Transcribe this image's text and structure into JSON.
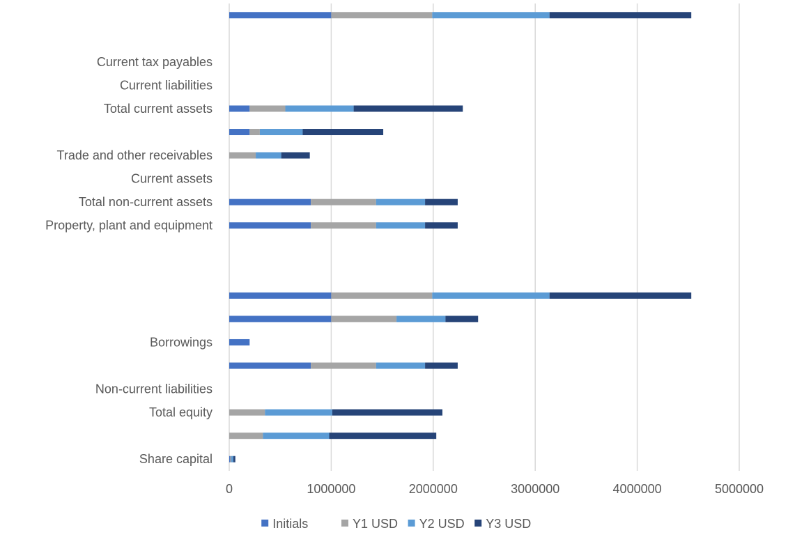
{
  "chart_data": {
    "type": "bar",
    "orientation": "horizontal",
    "stacked": true,
    "title": "",
    "xlabel": "",
    "ylabel": "",
    "xlim": [
      0,
      5000000
    ],
    "xticks": [
      "0",
      "1000000",
      "2000000",
      "3000000",
      "4000000",
      "5000000"
    ],
    "grid": true,
    "legend_position": "bottom",
    "categories": [
      "Share capital",
      "",
      "Total equity",
      "Non-current liabilities",
      "",
      "Borrowings",
      "",
      "",
      "",
      "",
      "Property, plant and equipment",
      "Total non-current assets",
      "Current assets",
      "Trade and other receivables",
      "",
      "Total current assets",
      "Current liabilities",
      "Current tax payables",
      "",
      ""
    ],
    "series": [
      {
        "name": "Initials",
        "color": "#4472C4",
        "values": [
          10000,
          0,
          0,
          0,
          800000,
          200000,
          1000000,
          1000000,
          0,
          0,
          800000,
          800000,
          0,
          0,
          200000,
          200000,
          0,
          0,
          0,
          1000000
        ]
      },
      {
        "name": "Y1 USD",
        "color": "#A5A5A5",
        "values": [
          10000,
          330000,
          350000,
          0,
          640000,
          0,
          640000,
          990000,
          0,
          0,
          640000,
          640000,
          0,
          260000,
          100000,
          350000,
          0,
          0,
          0,
          990000
        ]
      },
      {
        "name": "Y2 USD",
        "color": "#5B9BD5",
        "values": [
          20000,
          650000,
          660000,
          0,
          480000,
          0,
          480000,
          1150000,
          0,
          0,
          480000,
          480000,
          0,
          250000,
          420000,
          670000,
          0,
          0,
          0,
          1150000
        ]
      },
      {
        "name": "Y3 USD",
        "color": "#264478",
        "values": [
          20000,
          1050000,
          1080000,
          0,
          320000,
          0,
          320000,
          1390000,
          0,
          0,
          320000,
          320000,
          0,
          280000,
          790000,
          1070000,
          0,
          0,
          0,
          1390000
        ]
      }
    ]
  }
}
